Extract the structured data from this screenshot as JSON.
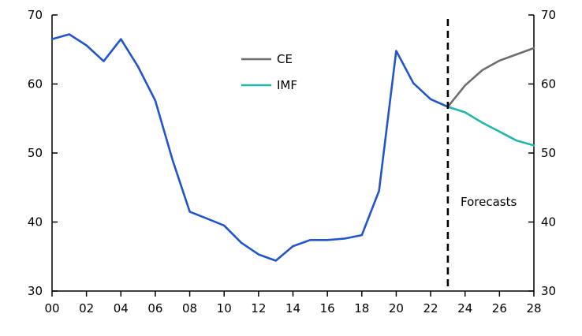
{
  "chart_data": {
    "type": "line",
    "title": "",
    "xlabel": "",
    "ylabel": "",
    "xlim": [
      2000,
      2028
    ],
    "ylim": [
      30,
      70
    ],
    "y_ticks": [
      30,
      40,
      50,
      60,
      70
    ],
    "x_ticks": [
      2000,
      2002,
      2004,
      2006,
      2008,
      2010,
      2012,
      2014,
      2016,
      2018,
      2020,
      2022,
      2024,
      2026,
      2028
    ],
    "x_tick_labels": [
      "00",
      "02",
      "04",
      "06",
      "08",
      "10",
      "12",
      "14",
      "16",
      "18",
      "20",
      "22",
      "24",
      "26",
      "28"
    ],
    "right_axis": true,
    "grid": false,
    "legend_position": "top-center",
    "forecast_start": 2023,
    "annotation": "Forecasts",
    "series": [
      {
        "color": "#2255cc",
        "x": [
          2000,
          2001,
          2002,
          2003,
          2004,
          2005,
          2006,
          2007,
          2008,
          2009,
          2010,
          2011,
          2012,
          2013,
          2014,
          2015,
          2016,
          2017,
          2018,
          2019,
          2020,
          2021,
          2022,
          2023
        ],
        "values": [
          66.5,
          67.2,
          65.6,
          63.3,
          66.5,
          62.5,
          57.6,
          49.0,
          41.5,
          40.5,
          39.5,
          37.0,
          35.3,
          34.4,
          36.5,
          37.4,
          37.4,
          37.6,
          38.1,
          44.5,
          64.8,
          60.1,
          57.8,
          56.7
        ]
      },
      {
        "name": "CE",
        "color": "#6e6e6e",
        "x": [
          2023,
          2024,
          2025,
          2026,
          2027,
          2028
        ],
        "values": [
          56.7,
          59.8,
          62.0,
          63.4,
          64.3,
          65.2
        ]
      },
      {
        "name": "IMF",
        "color": "#1fb8a8",
        "x": [
          2023,
          2024,
          2025,
          2026,
          2027,
          2028
        ],
        "values": [
          56.7,
          55.9,
          54.4,
          53.1,
          51.8,
          51.1
        ]
      }
    ]
  }
}
